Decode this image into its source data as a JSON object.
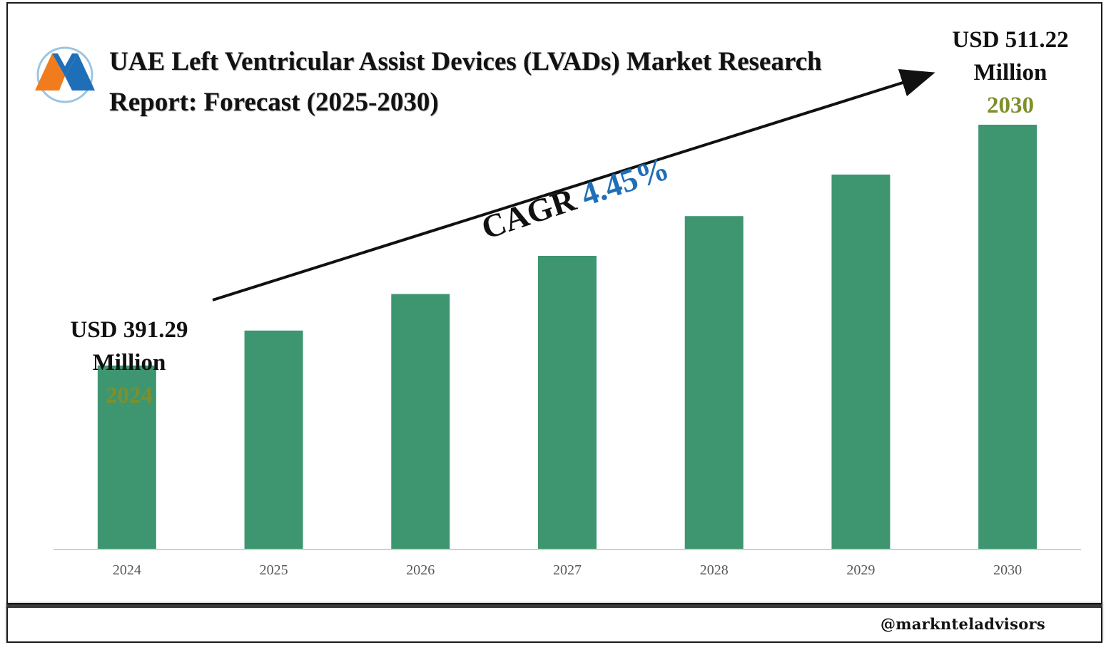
{
  "header": {
    "title": "UAE Left Ventricular Assist Devices (LVADs) Market Research Report: Forecast (2025-2030)"
  },
  "callouts": {
    "start": {
      "value": "USD 391.29",
      "unit": "Million",
      "year": "2024"
    },
    "end": {
      "value": "USD 511.22",
      "unit": "Million",
      "year": "2030"
    },
    "cagr": {
      "label": "CAGR",
      "value": "4.45%"
    }
  },
  "footer": {
    "handle": "@marknteladvisors"
  },
  "colors": {
    "bar": "#3d9670",
    "year_accent": "#7f8f2a",
    "cagr_value": "#1f6fb8",
    "axis_text": "#595959"
  },
  "icons": {
    "logo": "markntel-m-logo"
  },
  "chart_data": {
    "type": "bar",
    "categories": [
      "2024",
      "2025",
      "2026",
      "2027",
      "2028",
      "2029",
      "2030"
    ],
    "values": [
      391.29,
      408.7,
      426.9,
      445.9,
      465.7,
      486.4,
      511.22
    ],
    "ylim": [
      300,
      520
    ],
    "grid": false,
    "legend": "none",
    "annotations": [
      "USD 391.29 Million 2024",
      "USD 511.22 Million 2030",
      "CAGR 4.45%"
    ]
  }
}
